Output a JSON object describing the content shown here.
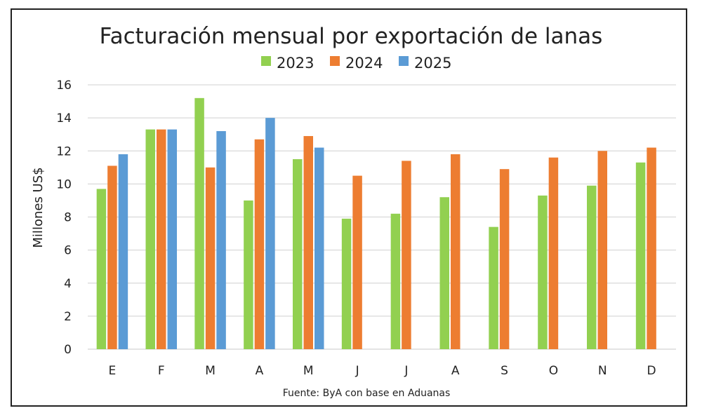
{
  "chart_data": {
    "type": "bar",
    "title": "Facturación mensual por exportación de lanas",
    "ylabel": "Millones US$",
    "xlabel": "",
    "source": "Fuente: ByA con base en Aduanas",
    "categories": [
      "E",
      "F",
      "M",
      "A",
      "M",
      "J",
      "J",
      "A",
      "S",
      "O",
      "N",
      "D"
    ],
    "ylim": [
      0,
      16
    ],
    "yticks": [
      0,
      2,
      4,
      6,
      8,
      10,
      12,
      14,
      16
    ],
    "grid": true,
    "legend_position": "top",
    "series": [
      {
        "name": "2023",
        "color": "#92D050",
        "values": [
          9.7,
          13.3,
          15.2,
          9.0,
          11.5,
          7.9,
          8.2,
          9.2,
          7.4,
          9.3,
          9.9,
          11.3
        ]
      },
      {
        "name": "2024",
        "color": "#ED7D31",
        "values": [
          11.1,
          13.3,
          11.0,
          12.7,
          12.9,
          10.5,
          11.4,
          11.8,
          10.9,
          11.6,
          12.0,
          12.2
        ]
      },
      {
        "name": "2025",
        "color": "#5B9BD5",
        "values": [
          11.8,
          13.3,
          13.2,
          14.0,
          12.2,
          null,
          null,
          null,
          null,
          null,
          null,
          null
        ]
      }
    ]
  }
}
